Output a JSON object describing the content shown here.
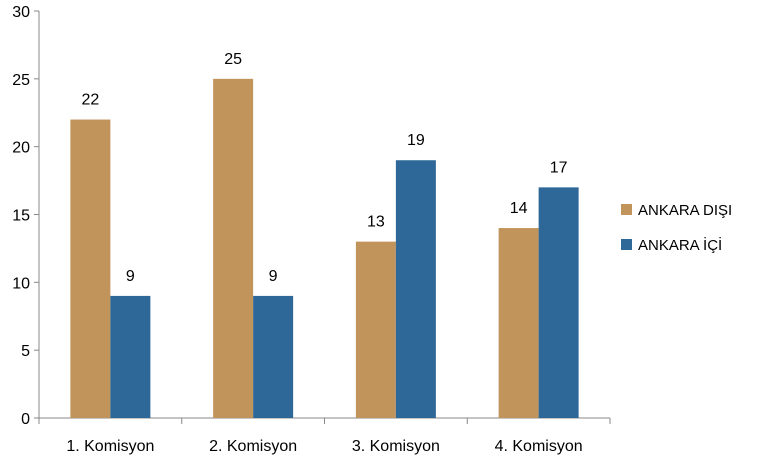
{
  "chart_data": {
    "type": "bar",
    "title": "",
    "xlabel": "",
    "ylabel": "",
    "ylim": [
      0,
      30
    ],
    "y_ticks": [
      0,
      5,
      10,
      15,
      20,
      25,
      30
    ],
    "grid": false,
    "legend_position": "right",
    "categories": [
      "1. Komisyon",
      "2. Komisyon",
      "3. Komisyon",
      "4. Komisyon"
    ],
    "series": [
      {
        "name": "ANKARA DIŞI",
        "color": "#C0945A",
        "values": [
          22,
          25,
          13,
          14
        ]
      },
      {
        "name": "ANKARA İÇİ",
        "color": "#2E6898",
        "values": [
          9,
          9,
          19,
          17
        ]
      }
    ]
  }
}
